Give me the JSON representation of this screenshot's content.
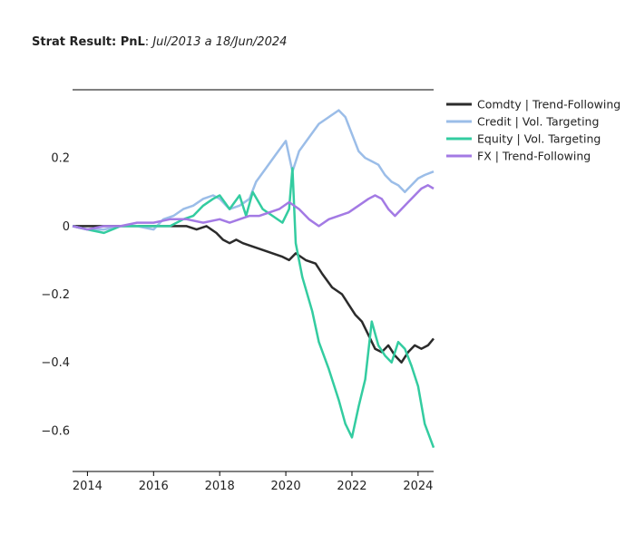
{
  "title": {
    "bold": "Strat Result: PnL",
    "sep": ": ",
    "italic": "Jul/2013 a 18/Jun/2024"
  },
  "chart_data": {
    "type": "line",
    "xlim": [
      2013.55,
      2024.47
    ],
    "ylim": [
      -0.72,
      0.4
    ],
    "x_ticks": [
      2014,
      2016,
      2018,
      2020,
      2022,
      2024
    ],
    "x_tick_labels": [
      "2014",
      "2016",
      "2018",
      "2020",
      "2022",
      "2024"
    ],
    "y_ticks": [
      -0.6,
      -0.4,
      -0.2,
      0,
      0.2
    ],
    "y_tick_labels": [
      "−0.6",
      "−0.4",
      "−0.2",
      "0",
      "0.2"
    ],
    "grid": false,
    "legend_position": "top-right",
    "series": [
      {
        "name": "Comdty | Trend-Following",
        "color": "#2b2b2b",
        "x": [
          2013.55,
          2014.0,
          2014.5,
          2015.0,
          2015.5,
          2016.0,
          2016.5,
          2017.0,
          2017.3,
          2017.6,
          2017.9,
          2018.1,
          2018.3,
          2018.5,
          2018.7,
          2019.0,
          2019.3,
          2019.6,
          2019.9,
          2020.1,
          2020.3,
          2020.6,
          2020.9,
          2021.1,
          2021.4,
          2021.7,
          2021.9,
          2022.1,
          2022.3,
          2022.5,
          2022.7,
          2022.9,
          2023.1,
          2023.3,
          2023.5,
          2023.7,
          2023.9,
          2024.1,
          2024.3,
          2024.47
        ],
        "y": [
          0.0,
          0.0,
          0.0,
          0.0,
          0.0,
          0.0,
          0.0,
          0.0,
          -0.01,
          0.0,
          -0.02,
          -0.04,
          -0.05,
          -0.04,
          -0.05,
          -0.06,
          -0.07,
          -0.08,
          -0.09,
          -0.1,
          -0.08,
          -0.1,
          -0.11,
          -0.14,
          -0.18,
          -0.2,
          -0.23,
          -0.26,
          -0.28,
          -0.32,
          -0.36,
          -0.37,
          -0.35,
          -0.38,
          -0.4,
          -0.37,
          -0.35,
          -0.36,
          -0.35,
          -0.33
        ]
      },
      {
        "name": "Credit | Vol. Targeting",
        "color": "#9bbde8",
        "x": [
          2013.55,
          2014.0,
          2014.5,
          2015.0,
          2015.5,
          2016.0,
          2016.3,
          2016.6,
          2016.9,
          2017.2,
          2017.5,
          2017.8,
          2018.0,
          2018.3,
          2018.6,
          2018.9,
          2019.1,
          2019.4,
          2019.7,
          2020.0,
          2020.2,
          2020.4,
          2020.7,
          2021.0,
          2021.3,
          2021.6,
          2021.8,
          2022.0,
          2022.2,
          2022.4,
          2022.6,
          2022.8,
          2023.0,
          2023.2,
          2023.4,
          2023.6,
          2023.8,
          2024.0,
          2024.2,
          2024.47
        ],
        "y": [
          0.0,
          -0.01,
          -0.01,
          0.0,
          0.0,
          -0.01,
          0.02,
          0.03,
          0.05,
          0.06,
          0.08,
          0.09,
          0.08,
          0.05,
          0.06,
          0.08,
          0.13,
          0.17,
          0.21,
          0.25,
          0.16,
          0.22,
          0.26,
          0.3,
          0.32,
          0.34,
          0.32,
          0.27,
          0.22,
          0.2,
          0.19,
          0.18,
          0.15,
          0.13,
          0.12,
          0.1,
          0.12,
          0.14,
          0.15,
          0.16
        ]
      },
      {
        "name": "Equity | Vol. Targeting",
        "color": "#33cca0",
        "x": [
          2013.55,
          2014.0,
          2014.5,
          2015.0,
          2015.5,
          2016.0,
          2016.5,
          2016.9,
          2017.2,
          2017.5,
          2017.8,
          2018.0,
          2018.3,
          2018.6,
          2018.8,
          2019.0,
          2019.3,
          2019.6,
          2019.9,
          2020.1,
          2020.2,
          2020.3,
          2020.5,
          2020.8,
          2021.0,
          2021.3,
          2021.6,
          2021.8,
          2022.0,
          2022.2,
          2022.4,
          2022.6,
          2022.8,
          2023.0,
          2023.2,
          2023.4,
          2023.6,
          2023.8,
          2024.0,
          2024.2,
          2024.47
        ],
        "y": [
          0.0,
          -0.01,
          -0.02,
          0.0,
          0.0,
          0.0,
          0.0,
          0.02,
          0.03,
          0.06,
          0.08,
          0.09,
          0.05,
          0.09,
          0.03,
          0.1,
          0.05,
          0.03,
          0.01,
          0.05,
          0.17,
          -0.05,
          -0.15,
          -0.25,
          -0.34,
          -0.42,
          -0.51,
          -0.58,
          -0.62,
          -0.53,
          -0.45,
          -0.28,
          -0.35,
          -0.38,
          -0.4,
          -0.34,
          -0.36,
          -0.41,
          -0.47,
          -0.58,
          -0.65
        ]
      },
      {
        "name": "FX | Trend-Following",
        "color": "#a37ae4",
        "x": [
          2013.55,
          2014.0,
          2014.5,
          2015.0,
          2015.5,
          2016.0,
          2016.5,
          2017.0,
          2017.5,
          2018.0,
          2018.3,
          2018.6,
          2018.9,
          2019.2,
          2019.5,
          2019.8,
          2020.1,
          2020.4,
          2020.7,
          2021.0,
          2021.3,
          2021.6,
          2021.9,
          2022.2,
          2022.5,
          2022.7,
          2022.9,
          2023.1,
          2023.3,
          2023.5,
          2023.7,
          2023.9,
          2024.1,
          2024.3,
          2024.47
        ],
        "y": [
          0.0,
          -0.01,
          0.0,
          0.0,
          0.01,
          0.01,
          0.02,
          0.02,
          0.01,
          0.02,
          0.01,
          0.02,
          0.03,
          0.03,
          0.04,
          0.05,
          0.07,
          0.05,
          0.02,
          0.0,
          0.02,
          0.03,
          0.04,
          0.06,
          0.08,
          0.09,
          0.08,
          0.05,
          0.03,
          0.05,
          0.07,
          0.09,
          0.11,
          0.12,
          0.11
        ]
      }
    ]
  }
}
